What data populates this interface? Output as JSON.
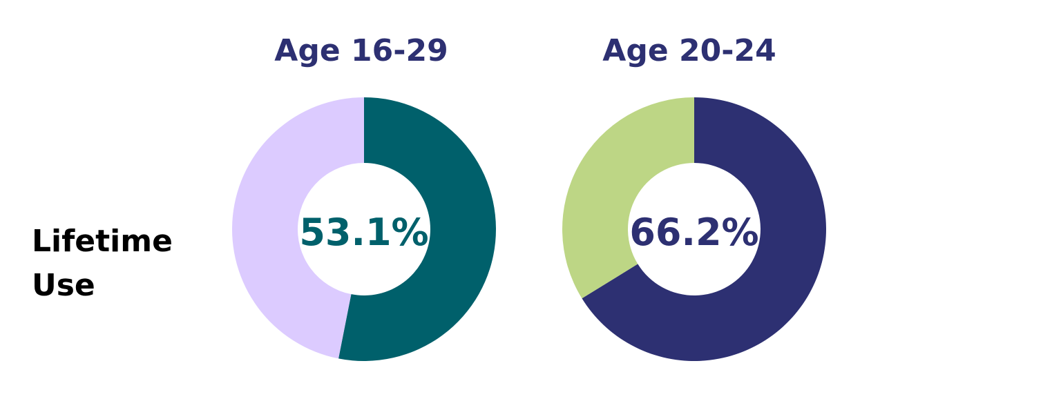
{
  "row_label": {
    "line1": "Lifetime",
    "line2": "Use"
  },
  "chart_data": [
    {
      "type": "pie",
      "title": "Age 16-29",
      "center_label": "53.1%",
      "slices": [
        {
          "value": 53.1,
          "color": "#00606B"
        },
        {
          "value": 46.9,
          "color": "#DCCBFF"
        }
      ],
      "title_color": "#2D3072",
      "center_label_color": "#00606B"
    },
    {
      "type": "pie",
      "title": "Age 20-24",
      "center_label": "66.2%",
      "slices": [
        {
          "value": 66.2,
          "color": "#2D3072"
        },
        {
          "value": 33.8,
          "color": "#BDD685"
        }
      ],
      "title_color": "#2D3072",
      "center_label_color": "#2D3072"
    }
  ]
}
